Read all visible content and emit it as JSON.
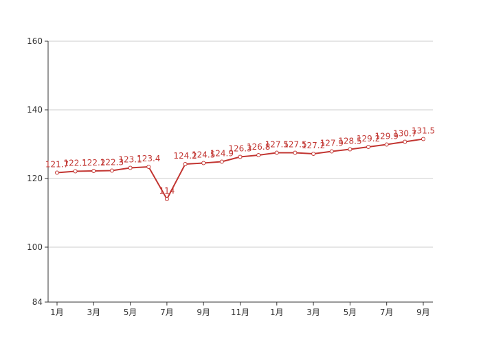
{
  "chart_data": {
    "type": "line",
    "title": "",
    "xlabel": "",
    "ylabel": "",
    "categories": [
      "1月",
      "2月",
      "3月",
      "4月",
      "5月",
      "6月",
      "7月",
      "8月",
      "9月",
      "10月",
      "11月",
      "12月",
      "1月",
      "2月",
      "3月",
      "4月",
      "5月",
      "6月",
      "7月",
      "8月",
      "9月"
    ],
    "x_tick_labels": [
      "1月",
      "3月",
      "5月",
      "7月",
      "9月",
      "11月",
      "1月",
      "3月",
      "5月",
      "7月",
      "9月"
    ],
    "y_ticks": [
      84,
      100,
      120,
      140,
      160
    ],
    "ylim": [
      84,
      160
    ],
    "grid": true,
    "series": [
      {
        "values": [
          121.7,
          122.1,
          122.2,
          122.3,
          123.1,
          123.4,
          114,
          124.2,
          124.5,
          124.9,
          126.3,
          126.8,
          127.5,
          127.5,
          127.2,
          127.9,
          128.5,
          129.2,
          129.9,
          130.7,
          131.5
        ],
        "labels": [
          "121.7",
          "122.1",
          "122.2",
          "122.3",
          "123.1",
          "123.4",
          "114",
          "124.2",
          "124.5",
          "124.9",
          "126.3",
          "126.8",
          "127.5",
          "127.5",
          "127.2",
          "127.9",
          "128.5",
          "129.2",
          "129.9",
          "130.7",
          "131.5"
        ],
        "color": "#c23531"
      }
    ]
  }
}
